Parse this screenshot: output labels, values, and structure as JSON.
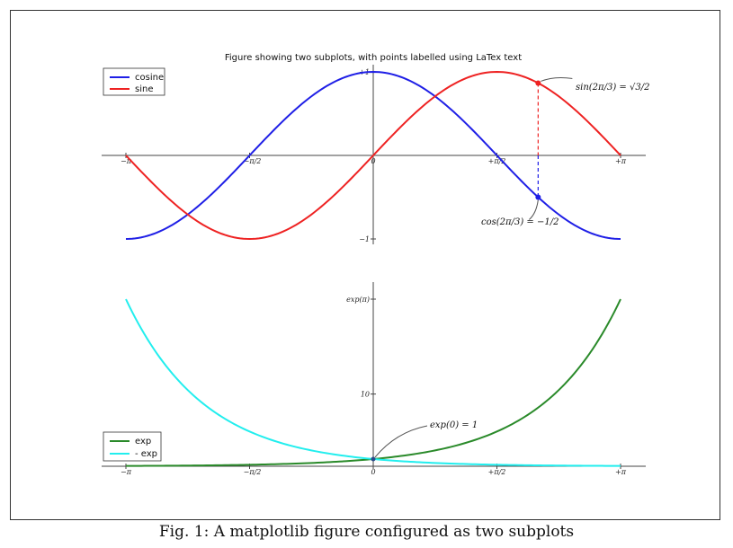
{
  "caption": "Fig. 1: A matplotlib figure configured as two subplots",
  "colors": {
    "cosine": "#1f1fe6",
    "sine": "#ee2222",
    "exp": "#2a8a2a",
    "neg_exp": "#22eeee",
    "axes": "#444444"
  },
  "chart_data": [
    {
      "type": "line",
      "title": "Figure showing two subplots, with points labelled using LaTex text",
      "xlim": [
        -3.14159,
        3.14159
      ],
      "ylim": [
        -1.05,
        1.05
      ],
      "x_ticks": [
        {
          "value": -3.14159,
          "label": "−π"
        },
        {
          "value": -1.5708,
          "label": "−π/2"
        },
        {
          "value": 0,
          "label": "0"
        },
        {
          "value": 1.5708,
          "label": "+π/2"
        },
        {
          "value": 3.14159,
          "label": "+π"
        }
      ],
      "y_ticks": [
        {
          "value": 1,
          "label": "+1"
        },
        {
          "value": -1,
          "label": "−1"
        }
      ],
      "legend": {
        "placement": "top-left",
        "entries": [
          "cosine",
          "sine"
        ]
      },
      "series": [
        {
          "name": "cosine",
          "function": "cos",
          "color_key": "cosine"
        },
        {
          "name": "sine",
          "function": "sin",
          "color_key": "sine"
        }
      ],
      "annotations": [
        {
          "text": "sin(2π/3) = √3/2",
          "x": 2.0944,
          "y": 0.866,
          "color_key": "sine"
        },
        {
          "text": "cos(2π/3) = −1/2",
          "x": 2.0944,
          "y": -0.5,
          "color_key": "cosine"
        }
      ]
    },
    {
      "type": "line",
      "xlim": [
        -3.14159,
        3.14159
      ],
      "ylim": [
        0,
        24
      ],
      "x_ticks": [
        {
          "value": -3.14159,
          "label": "−π"
        },
        {
          "value": -1.5708,
          "label": "−π/2"
        },
        {
          "value": 0,
          "label": "0"
        },
        {
          "value": 1.5708,
          "label": "+π/2"
        },
        {
          "value": 3.14159,
          "label": "+π"
        }
      ],
      "y_ticks": [
        {
          "value": 23.1407,
          "label": "exp(π)"
        },
        {
          "value": 10,
          "label": "10"
        }
      ],
      "legend": {
        "placement": "bottom-left",
        "entries": [
          "exp",
          "- exp"
        ]
      },
      "series": [
        {
          "name": "exp",
          "function": "exp",
          "color_key": "exp"
        },
        {
          "name": "- exp",
          "function": "negexp",
          "color_key": "neg_exp"
        }
      ],
      "annotations": [
        {
          "text": "exp(0) = 1",
          "x": 0,
          "y": 1
        }
      ]
    }
  ]
}
